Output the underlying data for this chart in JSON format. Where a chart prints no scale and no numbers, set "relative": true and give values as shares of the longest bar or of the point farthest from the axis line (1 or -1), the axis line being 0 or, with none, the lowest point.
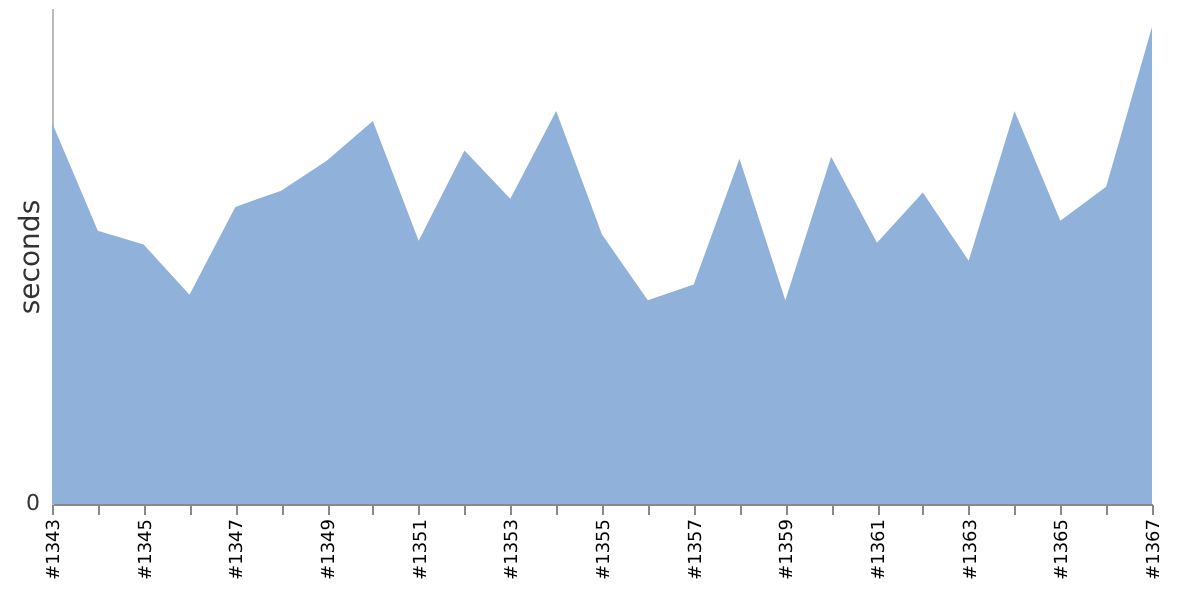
{
  "chart_data": {
    "type": "area",
    "ylabel": "seconds",
    "relative": true,
    "annotations": [
      "0"
    ],
    "color": "#8fb1da",
    "grid": false,
    "categories": [
      "#1343",
      null,
      "#1345",
      null,
      "#1347",
      null,
      "#1349",
      null,
      "#1351",
      null,
      "#1353",
      null,
      "#1355",
      null,
      "#1357",
      null,
      "#1359",
      null,
      "#1361",
      null,
      "#1363",
      null,
      "#1365",
      null,
      "#1367"
    ],
    "values": [
      0.8,
      0.573,
      0.544,
      0.439,
      0.623,
      0.657,
      0.72,
      0.803,
      0.552,
      0.741,
      0.64,
      0.824,
      0.565,
      0.427,
      0.46,
      0.724,
      0.427,
      0.728,
      0.548,
      0.653,
      0.51,
      0.824,
      0.594,
      0.665,
      1
    ]
  }
}
